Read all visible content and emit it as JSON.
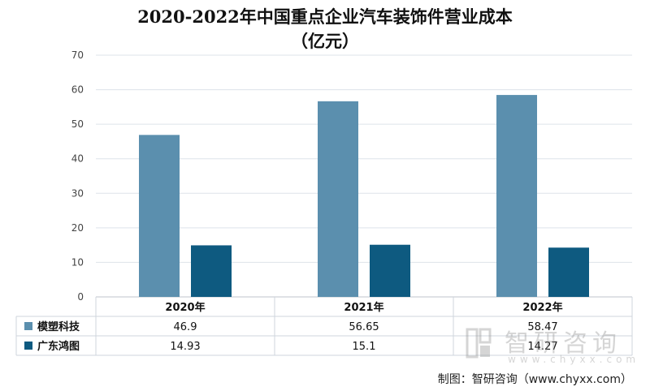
{
  "chart_data": {
    "type": "bar",
    "title_line1": "2020-2022年中国重点企业汽车装饰件营业成本",
    "title_line2": "（亿元）",
    "categories": [
      "2020年",
      "2021年",
      "2022年"
    ],
    "series": [
      {
        "name": "模塑科技",
        "values": [
          46.9,
          56.65,
          58.47
        ],
        "value_labels": [
          "46.9",
          "56.65",
          "58.47"
        ],
        "color": "#5b8fae"
      },
      {
        "name": "广东鸿图",
        "values": [
          14.93,
          15.1,
          14.27
        ],
        "value_labels": [
          "14.93",
          "15.1",
          "14.27"
        ],
        "color": "#0e5a80"
      }
    ],
    "yticks": [
      "0",
      "10",
      "20",
      "30",
      "40",
      "50",
      "60",
      "70"
    ],
    "ylim": [
      0,
      70
    ],
    "grid": true,
    "legend": "data-table"
  },
  "watermark": {
    "name": "智研咨询",
    "url": "www.chyxx.com"
  },
  "source": "制图：智研咨询（www.chyxx.com）"
}
